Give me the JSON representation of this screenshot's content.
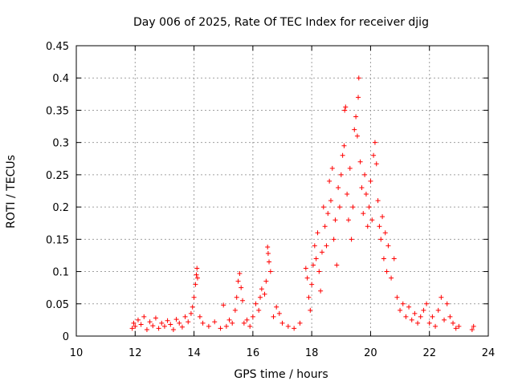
{
  "chart_data": {
    "type": "scatter",
    "title": "Day 006 of 2025, Rate Of TEC Index for receiver djig",
    "xlabel": "GPS time / hours",
    "ylabel": "ROTI / TECUs",
    "xlim": [
      10,
      24
    ],
    "ylim": [
      0,
      0.45
    ],
    "xticks": [
      10,
      12,
      14,
      16,
      18,
      20,
      22,
      24
    ],
    "xtick_labels": [
      "10",
      "12",
      "14",
      "16",
      "18",
      "20",
      "22",
      "24"
    ],
    "yticks": [
      0,
      0.05,
      0.1,
      0.15,
      0.2,
      0.25,
      0.3,
      0.35,
      0.4,
      0.45
    ],
    "ytick_labels": [
      "0",
      "0.05",
      "0.1",
      "0.15",
      "0.2",
      "0.25",
      "0.3",
      "0.35",
      "0.4",
      "0.45"
    ],
    "grid": true,
    "marker": "+",
    "color": "#ff0000",
    "series": [
      {
        "name": "ROTI",
        "points": [
          [
            11.9,
            0.012
          ],
          [
            11.95,
            0.02
          ],
          [
            12.0,
            0.015
          ],
          [
            12.1,
            0.025
          ],
          [
            12.2,
            0.018
          ],
          [
            12.3,
            0.03
          ],
          [
            12.4,
            0.01
          ],
          [
            12.5,
            0.022
          ],
          [
            12.6,
            0.016
          ],
          [
            12.7,
            0.028
          ],
          [
            12.8,
            0.012
          ],
          [
            12.9,
            0.02
          ],
          [
            13.0,
            0.015
          ],
          [
            13.1,
            0.024
          ],
          [
            13.2,
            0.018
          ],
          [
            13.3,
            0.01
          ],
          [
            13.4,
            0.026
          ],
          [
            13.5,
            0.02
          ],
          [
            13.6,
            0.014
          ],
          [
            13.7,
            0.03
          ],
          [
            13.8,
            0.022
          ],
          [
            13.9,
            0.035
          ],
          [
            13.95,
            0.045
          ],
          [
            14.0,
            0.06
          ],
          [
            14.05,
            0.08
          ],
          [
            14.08,
            0.095
          ],
          [
            14.1,
            0.105
          ],
          [
            14.12,
            0.09
          ],
          [
            14.2,
            0.03
          ],
          [
            14.3,
            0.02
          ],
          [
            14.5,
            0.015
          ],
          [
            14.7,
            0.022
          ],
          [
            14.9,
            0.012
          ],
          [
            15.0,
            0.048
          ],
          [
            15.1,
            0.015
          ],
          [
            15.2,
            0.025
          ],
          [
            15.3,
            0.02
          ],
          [
            15.4,
            0.04
          ],
          [
            15.45,
            0.06
          ],
          [
            15.5,
            0.085
          ],
          [
            15.55,
            0.097
          ],
          [
            15.6,
            0.075
          ],
          [
            15.65,
            0.055
          ],
          [
            15.7,
            0.02
          ],
          [
            15.8,
            0.025
          ],
          [
            15.9,
            0.015
          ],
          [
            16.0,
            0.03
          ],
          [
            16.1,
            0.05
          ],
          [
            16.2,
            0.04
          ],
          [
            16.25,
            0.06
          ],
          [
            16.3,
            0.073
          ],
          [
            16.4,
            0.065
          ],
          [
            16.45,
            0.085
          ],
          [
            16.5,
            0.138
          ],
          [
            16.52,
            0.128
          ],
          [
            16.55,
            0.115
          ],
          [
            16.6,
            0.1
          ],
          [
            16.7,
            0.03
          ],
          [
            16.8,
            0.045
          ],
          [
            16.9,
            0.035
          ],
          [
            17.0,
            0.02
          ],
          [
            17.2,
            0.015
          ],
          [
            17.4,
            0.012
          ],
          [
            17.6,
            0.02
          ],
          [
            17.8,
            0.105
          ],
          [
            17.85,
            0.09
          ],
          [
            17.9,
            0.06
          ],
          [
            17.95,
            0.04
          ],
          [
            18.0,
            0.08
          ],
          [
            18.05,
            0.11
          ],
          [
            18.1,
            0.14
          ],
          [
            18.15,
            0.12
          ],
          [
            18.2,
            0.16
          ],
          [
            18.25,
            0.1
          ],
          [
            18.3,
            0.07
          ],
          [
            18.35,
            0.13
          ],
          [
            18.4,
            0.2
          ],
          [
            18.45,
            0.17
          ],
          [
            18.5,
            0.14
          ],
          [
            18.55,
            0.19
          ],
          [
            18.6,
            0.24
          ],
          [
            18.65,
            0.21
          ],
          [
            18.7,
            0.26
          ],
          [
            18.75,
            0.15
          ],
          [
            18.8,
            0.18
          ],
          [
            18.85,
            0.11
          ],
          [
            18.9,
            0.23
          ],
          [
            18.95,
            0.2
          ],
          [
            19.0,
            0.25
          ],
          [
            19.05,
            0.28
          ],
          [
            19.1,
            0.295
          ],
          [
            19.12,
            0.35
          ],
          [
            19.15,
            0.355
          ],
          [
            19.2,
            0.22
          ],
          [
            19.25,
            0.18
          ],
          [
            19.3,
            0.26
          ],
          [
            19.35,
            0.15
          ],
          [
            19.4,
            0.2
          ],
          [
            19.45,
            0.32
          ],
          [
            19.5,
            0.34
          ],
          [
            19.55,
            0.31
          ],
          [
            19.58,
            0.37
          ],
          [
            19.6,
            0.4
          ],
          [
            19.65,
            0.27
          ],
          [
            19.7,
            0.23
          ],
          [
            19.75,
            0.19
          ],
          [
            19.8,
            0.25
          ],
          [
            19.85,
            0.22
          ],
          [
            19.9,
            0.17
          ],
          [
            19.95,
            0.2
          ],
          [
            20.0,
            0.24
          ],
          [
            20.05,
            0.18
          ],
          [
            20.1,
            0.28
          ],
          [
            20.15,
            0.3
          ],
          [
            20.2,
            0.267
          ],
          [
            20.25,
            0.21
          ],
          [
            20.3,
            0.17
          ],
          [
            20.35,
            0.15
          ],
          [
            20.4,
            0.185
          ],
          [
            20.45,
            0.12
          ],
          [
            20.5,
            0.16
          ],
          [
            20.55,
            0.1
          ],
          [
            20.6,
            0.14
          ],
          [
            20.7,
            0.09
          ],
          [
            20.8,
            0.12
          ],
          [
            20.9,
            0.06
          ],
          [
            21.0,
            0.04
          ],
          [
            21.1,
            0.05
          ],
          [
            21.2,
            0.03
          ],
          [
            21.3,
            0.045
          ],
          [
            21.4,
            0.025
          ],
          [
            21.5,
            0.035
          ],
          [
            21.6,
            0.02
          ],
          [
            21.7,
            0.03
          ],
          [
            21.8,
            0.04
          ],
          [
            21.9,
            0.05
          ],
          [
            22.0,
            0.02
          ],
          [
            22.1,
            0.03
          ],
          [
            22.2,
            0.015
          ],
          [
            22.3,
            0.04
          ],
          [
            22.4,
            0.06
          ],
          [
            22.5,
            0.025
          ],
          [
            22.6,
            0.05
          ],
          [
            22.7,
            0.03
          ],
          [
            22.8,
            0.02
          ],
          [
            22.9,
            0.012
          ],
          [
            23.0,
            0.015
          ],
          [
            23.45,
            0.01
          ],
          [
            23.5,
            0.015
          ]
        ]
      }
    ]
  }
}
